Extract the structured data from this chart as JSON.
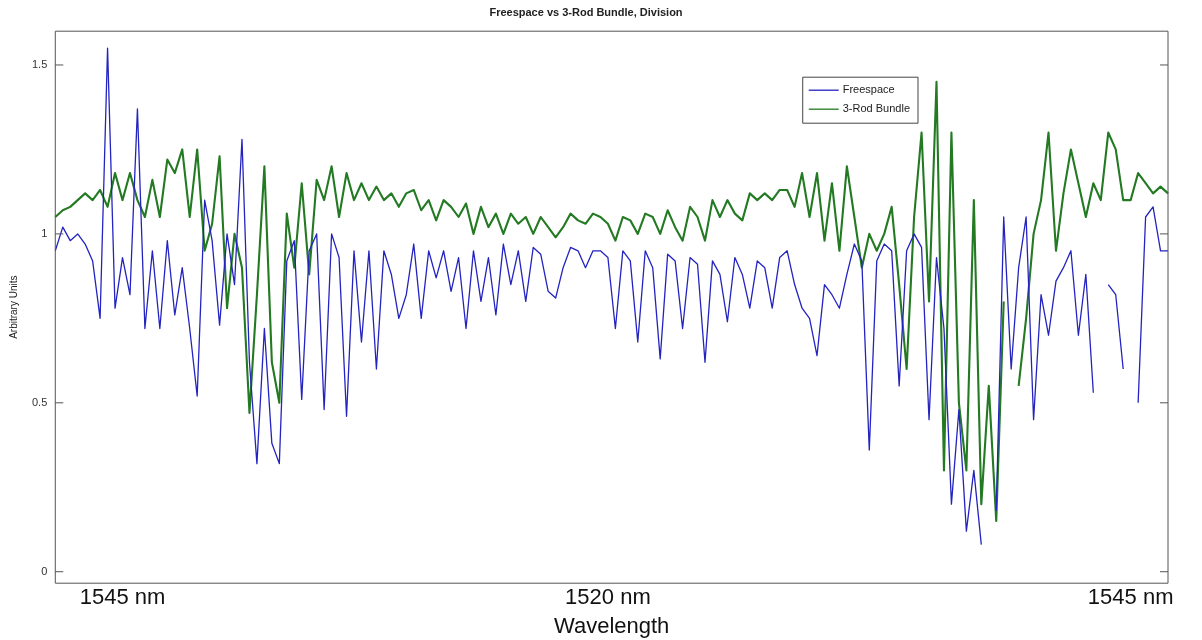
{
  "chart_data": {
    "type": "line",
    "title": "Freespace vs 3-Rod Bundle, Division",
    "xlabel": "Wavelength",
    "ylabel": "Arbitrary Units",
    "categories": [
      null,
      null,
      null,
      null,
      null,
      null,
      null,
      null,
      null,
      "1545 nm",
      null,
      null,
      null,
      null,
      null,
      null,
      null,
      null,
      null,
      null,
      null,
      null,
      null,
      null,
      null,
      null,
      null,
      null,
      null,
      null,
      null,
      null,
      null,
      null,
      null,
      null,
      null,
      null,
      null,
      null,
      null,
      null,
      null,
      null,
      null,
      null,
      null,
      null,
      null,
      null,
      null,
      null,
      null,
      null,
      null,
      null,
      null,
      null,
      null,
      null,
      null,
      null,
      null,
      null,
      null,
      null,
      null,
      null,
      null,
      null,
      null,
      null,
      null,
      null,
      "1520 nm",
      null,
      null,
      null,
      null,
      null,
      null,
      null,
      null,
      null,
      null,
      null,
      null,
      null,
      null,
      null,
      null,
      null,
      null,
      null,
      null,
      null,
      null,
      null,
      null,
      null,
      null,
      null,
      null,
      null,
      null,
      null,
      null,
      null,
      null,
      null,
      null,
      null,
      null,
      null,
      null,
      null,
      null,
      null,
      null,
      null,
      null,
      null,
      null,
      null,
      null,
      null,
      null,
      null,
      null,
      null,
      null,
      null,
      null,
      null,
      null,
      null,
      null,
      null,
      null,
      null,
      null,
      null,
      null,
      null,
      "1545 nm",
      null,
      null,
      null,
      null,
      null
    ],
    "series": [
      {
        "name": "Freespace",
        "color": "#2323c0",
        "values": [
          0.95,
          1.02,
          0.98,
          1.0,
          0.97,
          0.92,
          0.75,
          1.55,
          0.78,
          0.93,
          0.82,
          1.37,
          0.72,
          0.95,
          0.72,
          0.98,
          0.76,
          0.9,
          0.72,
          0.52,
          1.1,
          0.98,
          0.73,
          1.0,
          0.85,
          1.28,
          0.62,
          0.32,
          0.72,
          0.38,
          0.32,
          0.92,
          0.98,
          0.51,
          0.95,
          1.0,
          0.48,
          1.0,
          0.93,
          0.46,
          0.95,
          0.68,
          0.95,
          0.6,
          0.95,
          0.88,
          0.75,
          0.82,
          0.97,
          0.75,
          0.95,
          0.87,
          0.95,
          0.83,
          0.93,
          0.72,
          0.95,
          0.8,
          0.93,
          0.76,
          0.97,
          0.85,
          0.95,
          0.8,
          0.96,
          0.94,
          0.83,
          0.81,
          0.9,
          0.96,
          0.95,
          0.9,
          0.95,
          0.95,
          0.93,
          0.72,
          0.95,
          0.92,
          0.68,
          0.95,
          0.9,
          0.63,
          0.94,
          0.92,
          0.72,
          0.93,
          0.91,
          0.62,
          0.92,
          0.88,
          0.74,
          0.93,
          0.88,
          0.78,
          0.92,
          0.9,
          0.78,
          0.93,
          0.95,
          0.85,
          0.78,
          0.75,
          0.64,
          0.85,
          0.82,
          0.78,
          0.88,
          0.97,
          0.92,
          0.36,
          0.92,
          0.97,
          0.95,
          0.55,
          0.95,
          1.0,
          0.96,
          0.45,
          0.93,
          0.72,
          0.2,
          0.48,
          0.12,
          0.3,
          0.08,
          null,
          0.18,
          1.05,
          0.6,
          0.9,
          1.05,
          0.45,
          0.82,
          0.7,
          0.86,
          0.9,
          0.95,
          0.7,
          0.88,
          0.53,
          null,
          0.85,
          0.82,
          0.6,
          null,
          0.5,
          1.05,
          1.08,
          0.95,
          0.95
        ]
      },
      {
        "name": "3-Rod Bundle",
        "color": "#237a23",
        "values": [
          1.05,
          1.07,
          1.08,
          1.1,
          1.12,
          1.1,
          1.13,
          1.08,
          1.18,
          1.1,
          1.18,
          1.1,
          1.05,
          1.16,
          1.05,
          1.22,
          1.18,
          1.25,
          1.05,
          1.25,
          0.95,
          1.03,
          1.23,
          0.78,
          1.0,
          0.9,
          0.47,
          0.82,
          1.2,
          0.62,
          0.5,
          1.06,
          0.9,
          1.15,
          0.88,
          1.16,
          1.1,
          1.2,
          1.05,
          1.18,
          1.1,
          1.15,
          1.1,
          1.14,
          1.1,
          1.12,
          1.08,
          1.12,
          1.13,
          1.07,
          1.1,
          1.04,
          1.1,
          1.08,
          1.05,
          1.09,
          1.0,
          1.08,
          1.02,
          1.06,
          1.0,
          1.06,
          1.03,
          1.05,
          1.0,
          1.05,
          1.02,
          0.99,
          1.02,
          1.06,
          1.04,
          1.03,
          1.06,
          1.05,
          1.03,
          0.98,
          1.05,
          1.04,
          1.0,
          1.06,
          1.05,
          1.0,
          1.07,
          1.02,
          0.98,
          1.08,
          1.05,
          0.98,
          1.1,
          1.05,
          1.1,
          1.06,
          1.04,
          1.12,
          1.1,
          1.12,
          1.1,
          1.13,
          1.13,
          1.08,
          1.18,
          1.05,
          1.18,
          0.98,
          1.15,
          0.95,
          1.2,
          1.05,
          0.9,
          1.0,
          0.95,
          1.0,
          1.08,
          0.85,
          0.6,
          1.05,
          1.3,
          0.8,
          1.45,
          0.3,
          1.3,
          0.5,
          0.3,
          1.1,
          0.2,
          0.55,
          0.15,
          0.8,
          null,
          0.55,
          0.75,
          1.0,
          1.1,
          1.3,
          0.95,
          1.12,
          1.25,
          1.15,
          1.05,
          1.15,
          1.1,
          1.3,
          1.25,
          1.1,
          1.1,
          1.18,
          1.15,
          1.12,
          1.14,
          1.12
        ]
      }
    ],
    "ylim": [
      -0.034,
      1.6
    ],
    "yticks": [
      0,
      0.5,
      1,
      1.5
    ],
    "grid": false,
    "legend": "top right",
    "marker": "none",
    "line_style": "solid"
  }
}
